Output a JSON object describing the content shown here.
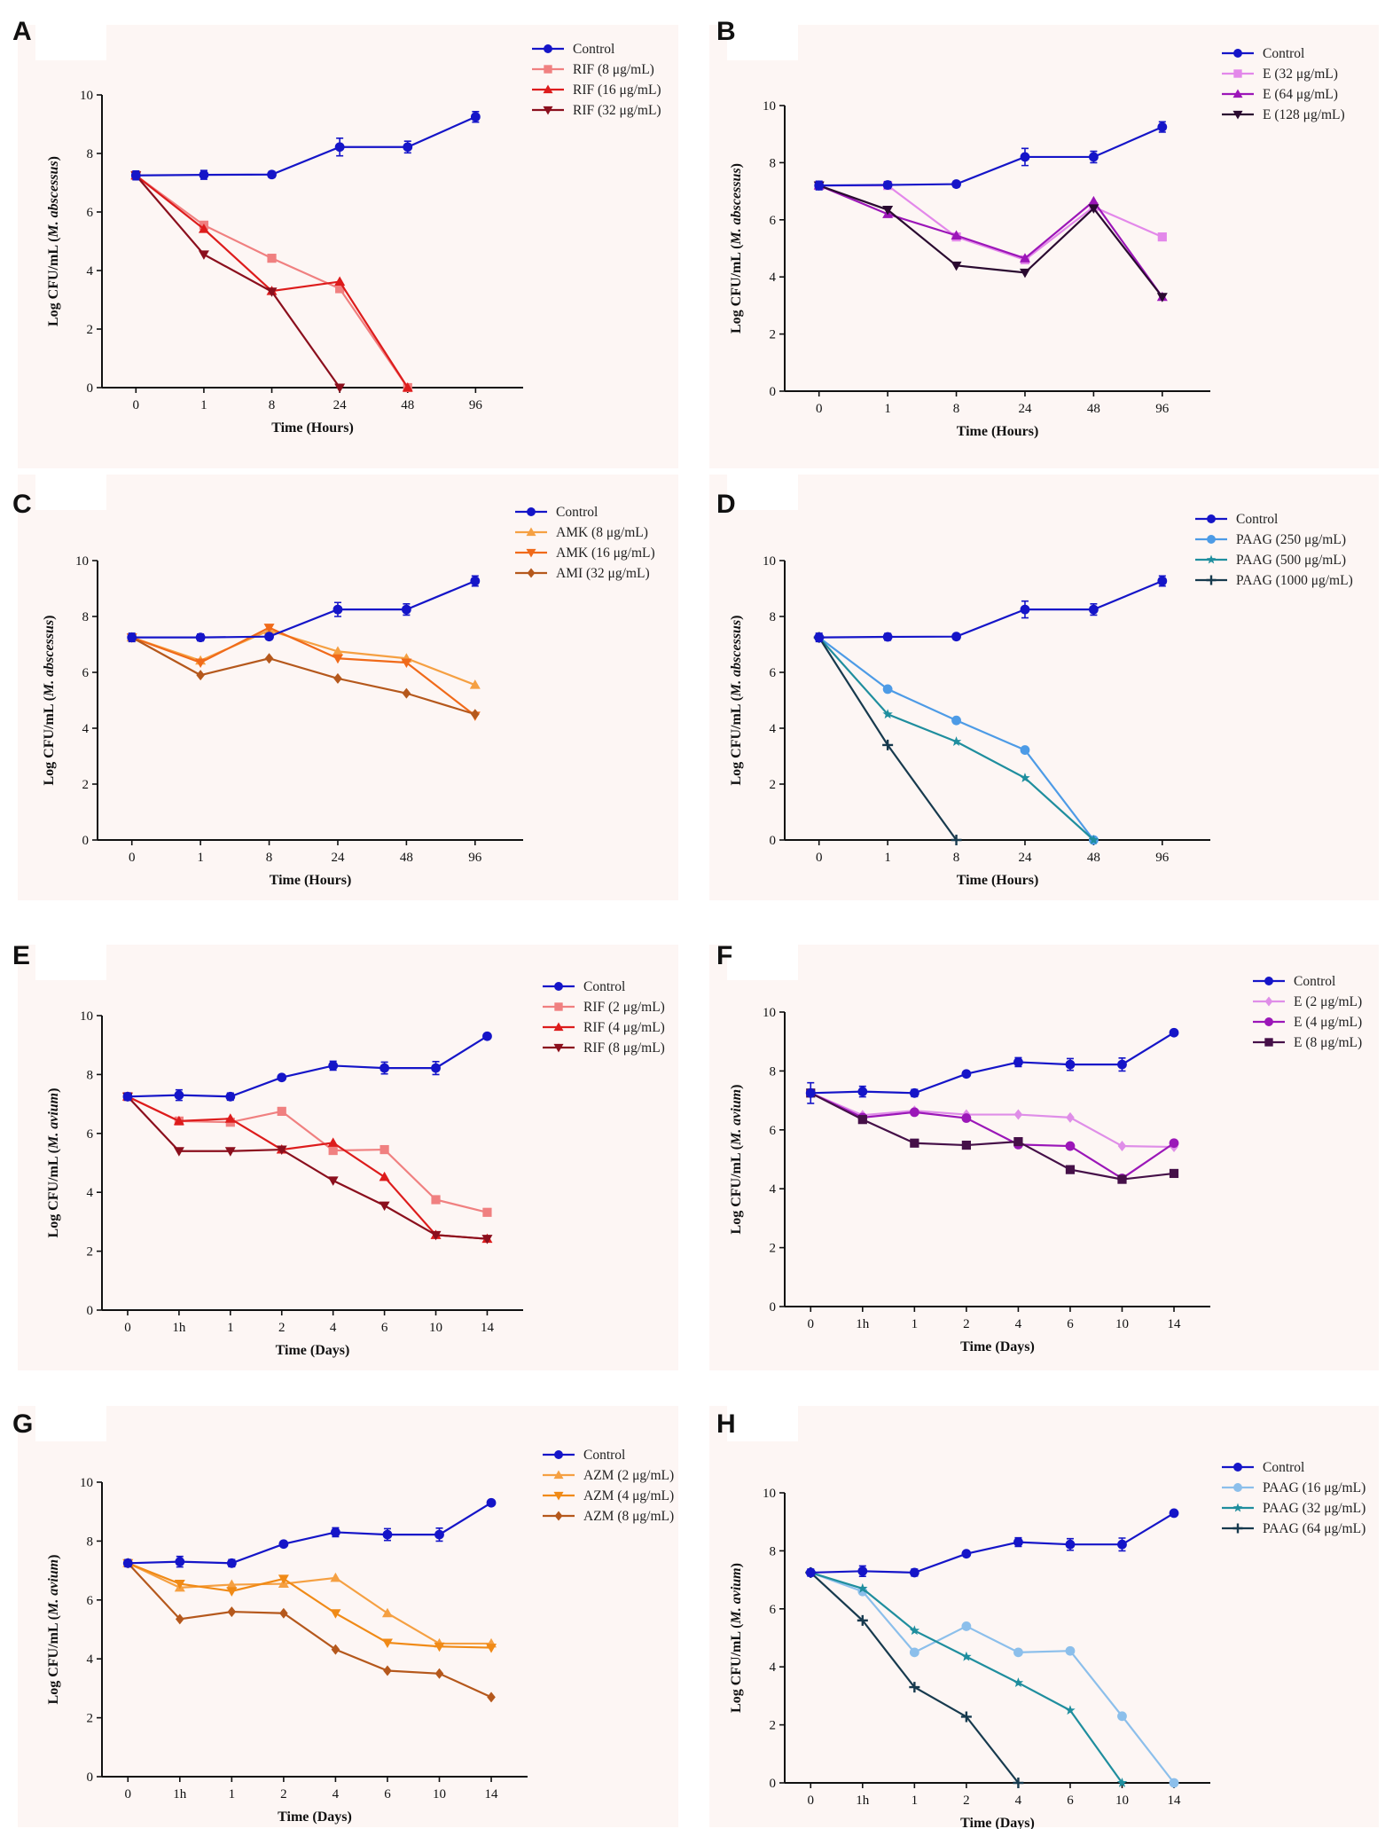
{
  "chart_data": [
    {
      "panel": "A",
      "type": "line",
      "categories": [
        "0",
        "1",
        "8",
        "24",
        "48",
        "96"
      ],
      "xlabel": "Time (Hours)",
      "ylabel_prefix": "Log CFU/mL (",
      "ylabel_species": "M. abscessus",
      "ylabel_suffix": ")",
      "ylim": [
        0,
        10
      ],
      "yticks": [
        0,
        2,
        4,
        6,
        8,
        10
      ],
      "series": [
        {
          "name": "Control",
          "color": "#1515c8",
          "marker": "circle",
          "values": [
            7.25,
            7.27,
            7.28,
            8.22,
            8.22,
            9.25
          ],
          "err": [
            0.15,
            0.15,
            0.1,
            0.3,
            0.2,
            0.18
          ]
        },
        {
          "name": "RIF (8 μg/mL)",
          "color": "#f08080",
          "marker": "square",
          "values": [
            7.25,
            5.55,
            4.42,
            3.38,
            0,
            null
          ]
        },
        {
          "name": "RIF (16 μg/mL)",
          "color": "#dd1c1c",
          "marker": "triangle",
          "values": [
            7.25,
            5.42,
            3.3,
            3.62,
            0,
            null
          ]
        },
        {
          "name": "RIF (32 μg/mL)",
          "color": "#8b0f1d",
          "marker": "triangle-down",
          "values": [
            7.25,
            4.55,
            3.28,
            0,
            null,
            null
          ]
        }
      ]
    },
    {
      "panel": "B",
      "type": "line",
      "categories": [
        "0",
        "1",
        "8",
        "24",
        "48",
        "96"
      ],
      "xlabel": "Time (Hours)",
      "ylabel_prefix": "Log CFU/mL (",
      "ylabel_species": "M. abscessus",
      "ylabel_suffix": ")",
      "ylim": [
        0,
        10
      ],
      "yticks": [
        0,
        2,
        4,
        6,
        8,
        10
      ],
      "series": [
        {
          "name": "Control",
          "color": "#1515c8",
          "marker": "circle",
          "values": [
            7.2,
            7.22,
            7.25,
            8.2,
            8.2,
            9.25
          ],
          "err": [
            0.15,
            0.12,
            0.1,
            0.3,
            0.2,
            0.18
          ]
        },
        {
          "name": "E (32 μg/mL)",
          "color": "#e388ea",
          "marker": "square",
          "values": [
            7.2,
            7.2,
            5.4,
            4.6,
            6.45,
            5.4
          ]
        },
        {
          "name": "E (64 μg/mL)",
          "color": "#9c16b8",
          "marker": "triangle",
          "values": [
            7.2,
            6.2,
            5.45,
            4.65,
            6.65,
            3.3
          ]
        },
        {
          "name": "E (128 μg/mL)",
          "color": "#2a0a30",
          "marker": "triangle-down",
          "values": [
            7.2,
            6.35,
            4.4,
            4.15,
            6.4,
            3.3
          ]
        }
      ]
    },
    {
      "panel": "C",
      "type": "line",
      "categories": [
        "0",
        "1",
        "8",
        "24",
        "48",
        "96"
      ],
      "xlabel": "Time (Hours)",
      "ylabel_prefix": "Log CFU/mL (",
      "ylabel_species": "M. abscessus",
      "ylabel_suffix": ")",
      "ylim": [
        0,
        10
      ],
      "yticks": [
        0,
        2,
        4,
        6,
        8,
        10
      ],
      "series": [
        {
          "name": "Control",
          "color": "#1515c8",
          "marker": "circle",
          "values": [
            7.25,
            7.25,
            7.28,
            8.25,
            8.25,
            9.27
          ],
          "err": [
            0.15,
            0.12,
            0.1,
            0.25,
            0.2,
            0.18
          ]
        },
        {
          "name": "AMK (8 μg/mL)",
          "color": "#f5a042",
          "marker": "triangle",
          "values": [
            7.25,
            6.42,
            7.5,
            6.75,
            6.5,
            5.55
          ]
        },
        {
          "name": "AMK (16 μg/mL)",
          "color": "#f06a1a",
          "marker": "triangle-down",
          "values": [
            7.25,
            6.35,
            7.6,
            6.5,
            6.35,
            4.45
          ]
        },
        {
          "name": "AMI (32 μg/mL)",
          "color": "#b5581c",
          "marker": "diamond",
          "values": [
            7.25,
            5.9,
            6.5,
            5.78,
            5.25,
            4.5
          ]
        }
      ]
    },
    {
      "panel": "D",
      "type": "line",
      "categories": [
        "0",
        "1",
        "8",
        "24",
        "48",
        "96"
      ],
      "xlabel": "Time (Hours)",
      "ylabel_prefix": "Log CFU/mL (",
      "ylabel_species": "M. abscessus",
      "ylabel_suffix": ")",
      "ylim": [
        0,
        10
      ],
      "yticks": [
        0,
        2,
        4,
        6,
        8,
        10
      ],
      "series": [
        {
          "name": "Control",
          "color": "#1515c8",
          "marker": "circle",
          "values": [
            7.25,
            7.27,
            7.28,
            8.25,
            8.25,
            9.27
          ],
          "err": [
            0.15,
            0.12,
            0.1,
            0.3,
            0.2,
            0.18
          ]
        },
        {
          "name": "PAAG (250 μg/mL)",
          "color": "#4d9be6",
          "marker": "circle",
          "values": [
            7.25,
            5.4,
            4.28,
            3.22,
            0,
            null
          ]
        },
        {
          "name": "PAAG (500 μg/mL)",
          "color": "#1f8e9e",
          "marker": "star",
          "values": [
            7.25,
            4.5,
            3.52,
            2.22,
            0,
            null
          ]
        },
        {
          "name": "PAAG (1000 μg/mL)",
          "color": "#173a4e",
          "marker": "plus",
          "values": [
            7.25,
            3.4,
            0,
            null,
            null,
            null
          ]
        }
      ]
    },
    {
      "panel": "E",
      "type": "line",
      "categories": [
        "0",
        "1h",
        "1",
        "2",
        "4",
        "6",
        "10",
        "14"
      ],
      "xlabel": "Time (Days)",
      "ylabel_prefix": "Log CFU/mL (",
      "ylabel_species": "M. avium",
      "ylabel_suffix": ")",
      "ylim": [
        0,
        10
      ],
      "yticks": [
        0,
        2,
        4,
        6,
        8,
        10
      ],
      "series": [
        {
          "name": "Control",
          "color": "#1515c8",
          "marker": "circle",
          "values": [
            7.25,
            7.3,
            7.25,
            7.9,
            8.3,
            8.22,
            8.22,
            9.3
          ],
          "err": [
            0.12,
            0.18,
            0.12,
            0.08,
            0.15,
            0.2,
            0.22,
            0.05
          ]
        },
        {
          "name": "RIF (2 μg/mL)",
          "color": "#f08080",
          "marker": "square",
          "values": [
            7.25,
            6.42,
            6.38,
            6.75,
            5.42,
            5.45,
            3.75,
            3.32
          ]
        },
        {
          "name": "RIF (4 μg/mL)",
          "color": "#dd1c1c",
          "marker": "triangle",
          "values": [
            7.25,
            6.42,
            6.5,
            5.45,
            5.68,
            4.52,
            2.55,
            2.42
          ]
        },
        {
          "name": "RIF (8 μg/mL)",
          "color": "#8b0f1d",
          "marker": "triangle-down",
          "values": [
            7.25,
            5.4,
            5.4,
            5.45,
            4.4,
            3.55,
            2.55,
            2.42
          ]
        }
      ]
    },
    {
      "panel": "F",
      "type": "line",
      "categories": [
        "0",
        "1h",
        "1",
        "2",
        "4",
        "6",
        "10",
        "14"
      ],
      "xlabel": "Time (Days)",
      "ylabel_prefix": "Log CFU/mL (",
      "ylabel_species": "M. avium",
      "ylabel_suffix": ")",
      "ylim": [
        0,
        10
      ],
      "yticks": [
        0,
        2,
        4,
        6,
        8,
        10
      ],
      "series": [
        {
          "name": "Control",
          "color": "#1515c8",
          "marker": "circle",
          "values": [
            7.25,
            7.3,
            7.25,
            7.9,
            8.3,
            8.22,
            8.22,
            9.3
          ],
          "err": [
            0.35,
            0.18,
            0.12,
            0.08,
            0.15,
            0.2,
            0.22,
            0.05
          ]
        },
        {
          "name": "E (2 μg/mL)",
          "color": "#df8ee8",
          "marker": "diamond",
          "values": [
            7.25,
            6.5,
            6.65,
            6.52,
            6.52,
            6.42,
            5.45,
            5.42
          ]
        },
        {
          "name": "E (4 μg/mL)",
          "color": "#9b17b8",
          "marker": "circle",
          "values": [
            7.25,
            6.42,
            6.6,
            6.4,
            5.5,
            5.45,
            4.35,
            5.55
          ]
        },
        {
          "name": "E (8 μg/mL)",
          "color": "#451048",
          "marker": "square",
          "values": [
            7.25,
            6.35,
            5.55,
            5.48,
            5.6,
            4.65,
            4.32,
            4.52
          ]
        }
      ]
    },
    {
      "panel": "G",
      "type": "line",
      "categories": [
        "0",
        "1h",
        "1",
        "2",
        "4",
        "6",
        "10",
        "14"
      ],
      "xlabel": "Time (Days)",
      "ylabel_prefix": "Log CFU/mL (",
      "ylabel_species": "M. avium",
      "ylabel_suffix": ")",
      "ylim": [
        0,
        10
      ],
      "yticks": [
        0,
        2,
        4,
        6,
        8,
        10
      ],
      "series": [
        {
          "name": "Control",
          "color": "#1515c8",
          "marker": "circle",
          "values": [
            7.25,
            7.3,
            7.25,
            7.9,
            8.3,
            8.22,
            8.22,
            9.3
          ],
          "err": [
            0.12,
            0.18,
            0.12,
            0.08,
            0.15,
            0.2,
            0.22,
            0.05
          ]
        },
        {
          "name": "AZM (2 μg/mL)",
          "color": "#f5a042",
          "marker": "triangle",
          "values": [
            7.25,
            6.42,
            6.52,
            6.55,
            6.75,
            5.55,
            4.52,
            4.52
          ]
        },
        {
          "name": "AZM (4 μg/mL)",
          "color": "#f08a16",
          "marker": "triangle-down",
          "values": [
            7.25,
            6.55,
            6.3,
            6.72,
            5.55,
            4.55,
            4.42,
            4.38
          ]
        },
        {
          "name": "AZM (8 μg/mL)",
          "color": "#b5581c",
          "marker": "diamond",
          "values": [
            7.25,
            5.35,
            5.6,
            5.55,
            4.32,
            3.6,
            3.5,
            2.7
          ]
        }
      ]
    },
    {
      "panel": "H",
      "type": "line",
      "categories": [
        "0",
        "1h",
        "1",
        "2",
        "4",
        "6",
        "10",
        "14"
      ],
      "xlabel": "Time (Days)",
      "ylabel_prefix": "Log CFU/mL (",
      "ylabel_species": "M. avium",
      "ylabel_suffix": ")",
      "ylim": [
        0,
        10
      ],
      "yticks": [
        0,
        2,
        4,
        6,
        8,
        10
      ],
      "series": [
        {
          "name": "Control",
          "color": "#1515c8",
          "marker": "circle",
          "values": [
            7.25,
            7.3,
            7.25,
            7.9,
            8.3,
            8.22,
            8.22,
            9.3
          ],
          "err": [
            0.12,
            0.18,
            0.12,
            0.08,
            0.15,
            0.2,
            0.22,
            0.05
          ]
        },
        {
          "name": "PAAG (16 μg/mL)",
          "color": "#8cbfeb",
          "marker": "circle",
          "values": [
            7.25,
            6.6,
            4.5,
            5.4,
            4.5,
            4.55,
            2.3,
            0
          ]
        },
        {
          "name": "PAAG (32 μg/mL)",
          "color": "#1f8e9e",
          "marker": "star",
          "values": [
            7.25,
            6.7,
            5.25,
            4.35,
            3.45,
            2.5,
            0,
            null
          ]
        },
        {
          "name": "PAAG (64 μg/mL)",
          "color": "#173a4e",
          "marker": "plus",
          "values": [
            7.25,
            5.6,
            3.3,
            2.28,
            0,
            null,
            null,
            null
          ]
        }
      ]
    }
  ]
}
